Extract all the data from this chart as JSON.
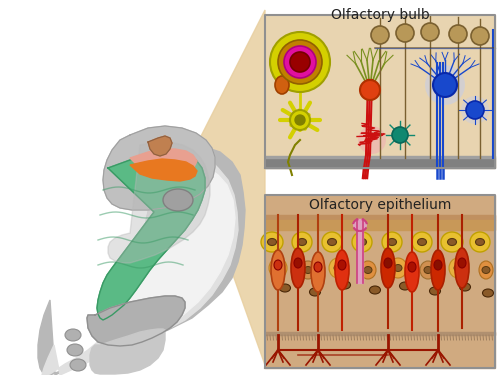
{
  "bg_color": "#ffffff",
  "label_bulb": "Olfactory bulb",
  "label_epi": "Olfactory epithelium",
  "label_fontsize": 10,
  "text_color": "#222222",
  "head_outer_color": "#b8b8b8",
  "head_inner_color": "#e0e0e0",
  "head_light_color": "#f2f2f2",
  "nasal_green": "#5aba85",
  "nasal_green_dark": "#3a9a65",
  "nasal_green_light": "#7dd0a0",
  "pink_region": "#e8a090",
  "orange_strip": "#e87820",
  "brown_olf": "#c08050",
  "connector_color": "#e8cfa0",
  "bulb_bg": "#e8d4b0",
  "bulb_border": "#909090",
  "bulb_floor": "#808080",
  "epi_bg": "#d0aa80",
  "epi_top_layer": "#c09060",
  "epi_border": "#909090",
  "yellow_cell_color": "#d4d000",
  "yellow_cell_edge": "#a0a000",
  "magenta_color": "#e010a0",
  "darkred_color": "#990000",
  "orange_cell": "#d06010",
  "yellow_neuron": "#c8c800",
  "olive_edge": "#808000",
  "red_neuron": "#e04010",
  "blue_neuron": "#1848cc",
  "blue_light": "#90a8e8",
  "teal_color": "#108870",
  "tan_soma": "#b89858",
  "epi_yellow": "#e8c030",
  "epi_orange": "#e07030",
  "epi_red": "#cc2800",
  "epi_darkred": "#aa1800",
  "epi_tan": "#c89060",
  "epi_pink": "#e0a0c0",
  "epi_pink_border": "#cc4080",
  "brown_nuc": "#8a5a28",
  "root_red": "#991500"
}
